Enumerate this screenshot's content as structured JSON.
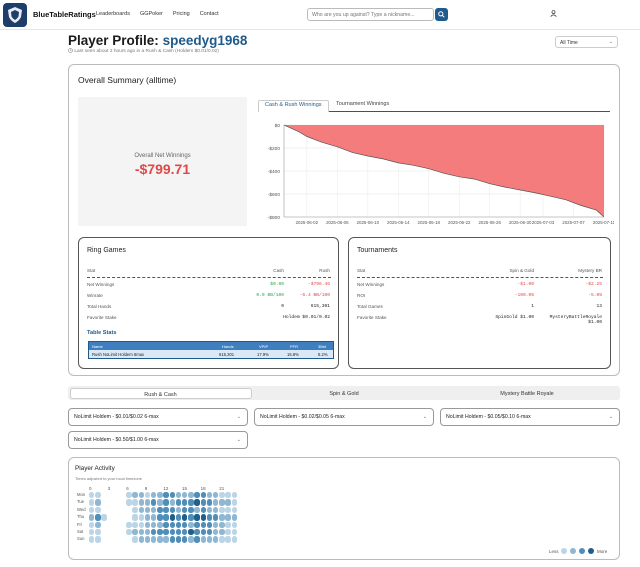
{
  "nav": {
    "brand": "BlueTableRatings",
    "links": [
      "Leaderboards",
      "GGPoker",
      "Pricing",
      "Contact"
    ],
    "search_placeholder": "Who are you up against? Type a nickname..."
  },
  "profile": {
    "title_prefix": "Player Profile:",
    "name": "speedyg1968",
    "last_seen": "Last seen about 2 hours ago in a Rush & Cash (Holdem $0.01/0.02)",
    "range": "All Time"
  },
  "summary": {
    "title": "Overall Summary (alltime)",
    "net_label": "Overall Net Winnings",
    "net_value": "-$799.71",
    "tabs": [
      "Cash & Rush Winnings",
      "Tournament Winnings"
    ]
  },
  "chart_data": {
    "type": "area",
    "title": "",
    "xlabel": "",
    "ylabel": "",
    "y_ticks": [
      "$0",
      "-$200",
      "-$400",
      "-$600",
      "-$800"
    ],
    "ylim": [
      -800,
      0
    ],
    "x_ticks": [
      "2025-06-02",
      "2025-06-06",
      "2025-06-10",
      "2025-06-14",
      "2025-06-18",
      "2025-06-22",
      "2025-06-26",
      "2025-06-30",
      "2025-07-03",
      "2025-07-07",
      "2025-07-11"
    ],
    "fill_color": "#f47c7c",
    "grid": true,
    "x": [
      "2025-05-30",
      "2025-06-01",
      "2025-06-02",
      "2025-06-04",
      "2025-06-06",
      "2025-06-08",
      "2025-06-10",
      "2025-06-12",
      "2025-06-14",
      "2025-06-16",
      "2025-06-18",
      "2025-06-20",
      "2025-06-22",
      "2025-06-24",
      "2025-06-26",
      "2025-06-28",
      "2025-06-30",
      "2025-07-02",
      "2025-07-04",
      "2025-07-06",
      "2025-07-08",
      "2025-07-10",
      "2025-07-11"
    ],
    "values": [
      0,
      -60,
      -100,
      -150,
      -190,
      -240,
      -270,
      -295,
      -330,
      -350,
      -380,
      -420,
      -450,
      -470,
      -510,
      -540,
      -565,
      -590,
      -620,
      -650,
      -700,
      -740,
      -800
    ]
  },
  "ring": {
    "title": "Ring Games",
    "headers": [
      "Stat",
      "Cash",
      "Rush"
    ],
    "rows": [
      {
        "label": "Net Winnings",
        "cash": "$0.00",
        "rush": "-$796.46",
        "cash_color": "#28a745",
        "rush_color": "#e04848"
      },
      {
        "label": "Winrate",
        "cash": "0.0 BB/100",
        "rush": "-6.4 BB/100",
        "cash_color": "#28a745",
        "rush_color": "#e04848"
      },
      {
        "label": "Total Hands",
        "cash": "0",
        "rush": "615,301",
        "cash_color": "#222",
        "rush_color": "#222"
      },
      {
        "label": "Favorite Stake",
        "cash": "",
        "rush": "Holdem $0.01/0.02",
        "cash_color": "#222",
        "rush_color": "#222"
      }
    ],
    "table_stats_title": "Table Stats",
    "table_headers": [
      "Name",
      "Hands",
      "VPIP",
      "PFR",
      "3Bet"
    ],
    "table_row": [
      "Rush NoLimit Holdem 6max",
      "615,301",
      "17.9%",
      "15.8%",
      "8.2%"
    ]
  },
  "tournaments": {
    "title": "Tournaments",
    "headers": [
      "Stat",
      "Spin & Gold",
      "Mystery BR"
    ],
    "rows": [
      {
        "label": "Net Winnings",
        "a": "-$1.00",
        "b": "-$2.25",
        "a_color": "#e04848",
        "b_color": "#e04848"
      },
      {
        "label": "ROI",
        "a": "-100.0%",
        "b": "-5.0%",
        "a_color": "#e04848",
        "b_color": "#e04848"
      },
      {
        "label": "Total Games",
        "a": "1",
        "b": "13",
        "a_color": "#222",
        "b_color": "#222"
      },
      {
        "label": "Favorite Stake",
        "a": "SpinGold $1.00",
        "b": "MysteryBattleRoyale $1.00",
        "a_color": "#222",
        "b_color": "#222"
      }
    ]
  },
  "game_tabs": [
    "Rush & Cash",
    "Spin & Gold",
    "Mystery Battle Royale"
  ],
  "stake_selects": [
    "NoLimit Holdem - $0.01/$0.02 6-max",
    "NoLimit Holdem - $0.02/$0.05 6-max",
    "NoLimit Holdem - $0.05/$0.10 6-max",
    "NoLimit Holdem - $0.50/$1.00 6-max"
  ],
  "activity": {
    "title": "Player Activity",
    "subtitle": "Times adjusted to your local timezone",
    "hours": [
      "0",
      "3",
      "6",
      "9",
      "12",
      "15",
      "18",
      "21"
    ],
    "days": [
      "Mon",
      "Tue",
      "Wed",
      "Thu",
      "Fri",
      "Sat",
      "Sun"
    ],
    "legend_less": "Less",
    "legend_more": "More",
    "levels": [
      [
        1,
        1,
        0,
        0,
        0,
        0,
        1,
        2,
        2,
        1,
        2,
        2,
        3,
        3,
        2,
        2,
        2,
        3,
        3,
        2,
        2,
        1,
        1,
        1
      ],
      [
        1,
        2,
        0,
        0,
        0,
        0,
        1,
        1,
        2,
        2,
        3,
        2,
        3,
        2,
        3,
        3,
        3,
        4,
        3,
        3,
        2,
        2,
        2,
        1
      ],
      [
        1,
        1,
        0,
        0,
        0,
        0,
        0,
        1,
        2,
        2,
        2,
        3,
        3,
        3,
        2,
        3,
        3,
        2,
        3,
        2,
        2,
        1,
        1,
        1
      ],
      [
        2,
        3,
        1,
        0,
        0,
        0,
        0,
        1,
        1,
        2,
        2,
        3,
        3,
        4,
        3,
        4,
        3,
        4,
        4,
        3,
        3,
        2,
        2,
        2
      ],
      [
        1,
        2,
        0,
        0,
        0,
        0,
        1,
        1,
        1,
        2,
        2,
        2,
        3,
        3,
        3,
        3,
        2,
        3,
        3,
        3,
        2,
        2,
        1,
        1
      ],
      [
        1,
        1,
        0,
        0,
        0,
        0,
        1,
        2,
        2,
        2,
        3,
        3,
        3,
        3,
        3,
        3,
        4,
        3,
        3,
        3,
        2,
        2,
        1,
        1
      ],
      [
        1,
        1,
        0,
        0,
        0,
        0,
        0,
        1,
        2,
        2,
        2,
        2,
        2,
        3,
        3,
        3,
        2,
        3,
        2,
        2,
        2,
        1,
        1,
        1
      ]
    ],
    "palette": [
      "#ffffff",
      "#bcd5e6",
      "#8fb7d2",
      "#4f8eb8",
      "#1f5f8d"
    ]
  }
}
